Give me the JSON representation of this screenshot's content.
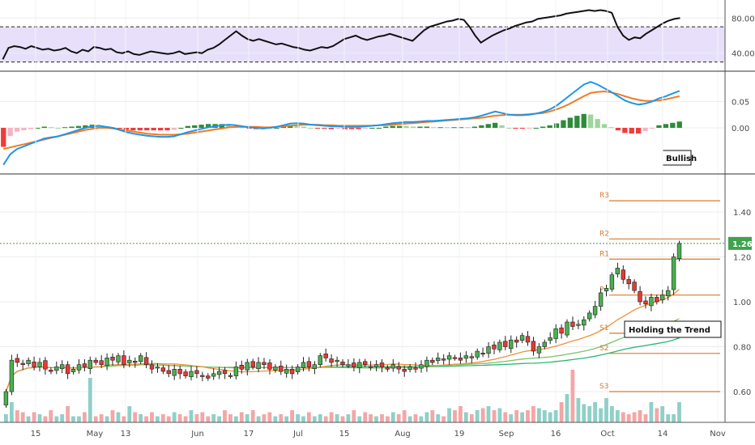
{
  "chart_data": {
    "type": "candlestick",
    "x_tick_labels": [
      "15",
      "May",
      "13",
      "Jun",
      "17",
      "Jul",
      "15",
      "Aug",
      "19",
      "Sep",
      "16",
      "Oct",
      "14",
      "Nov"
    ],
    "panels": {
      "rsi": {
        "ticks": [
          "80.00",
          "40.00"
        ],
        "band_upper": 70,
        "band_lower": 30,
        "values": [
          33,
          46,
          48,
          47,
          45,
          48,
          46,
          44,
          45,
          43,
          44,
          46,
          42,
          40,
          44,
          42,
          47,
          46,
          44,
          45,
          41,
          40,
          42,
          39,
          38,
          40,
          42,
          41,
          40,
          39,
          40,
          42,
          39,
          40,
          41,
          40,
          44,
          46,
          50,
          55,
          60,
          65,
          60,
          56,
          54,
          56,
          54,
          52,
          50,
          51,
          49,
          47,
          46,
          44,
          43,
          45,
          47,
          46,
          48,
          52,
          56,
          58,
          60,
          57,
          55,
          57,
          59,
          60,
          62,
          60,
          58,
          56,
          54,
          60,
          66,
          70,
          72,
          74,
          76,
          77,
          79,
          78,
          70,
          60,
          52,
          56,
          60,
          63,
          66,
          68,
          71,
          73,
          75,
          76,
          79,
          80,
          81,
          82,
          83,
          85,
          86,
          87,
          88,
          89,
          88,
          89,
          88,
          86,
          70,
          60,
          55,
          58,
          57,
          62,
          66,
          70,
          74,
          77,
          79,
          80
        ]
      },
      "macd": {
        "ticks": [
          "0.05",
          "0.00"
        ],
        "macd": [
          -0.07,
          -0.05,
          -0.04,
          -0.035,
          -0.03,
          -0.025,
          -0.02,
          -0.018,
          -0.016,
          -0.012,
          -0.008,
          -0.004,
          0.0,
          0.003,
          0.004,
          0.002,
          0.0,
          -0.004,
          -0.008,
          -0.011,
          -0.013,
          -0.015,
          -0.016,
          -0.017,
          -0.017,
          -0.016,
          -0.012,
          -0.008,
          -0.005,
          -0.002,
          0.001,
          0.003,
          0.005,
          0.006,
          0.005,
          0.003,
          0.001,
          0.0,
          -0.001,
          0.0,
          0.002,
          0.005,
          0.008,
          0.009,
          0.008,
          0.006,
          0.005,
          0.004,
          0.003,
          0.003,
          0.002,
          0.002,
          0.002,
          0.003,
          0.004,
          0.005,
          0.007,
          0.009,
          0.01,
          0.011,
          0.011,
          0.012,
          0.013,
          0.013,
          0.014,
          0.015,
          0.016,
          0.017,
          0.018,
          0.02,
          0.023,
          0.027,
          0.031,
          0.028,
          0.025,
          0.024,
          0.024,
          0.025,
          0.027,
          0.03,
          0.035,
          0.042,
          0.052,
          0.062,
          0.072,
          0.082,
          0.087,
          0.082,
          0.075,
          0.068,
          0.06,
          0.052,
          0.047,
          0.044,
          0.046,
          0.05,
          0.056,
          0.06,
          0.065,
          0.07
        ],
        "signal": [
          -0.04,
          -0.037,
          -0.034,
          -0.031,
          -0.028,
          -0.025,
          -0.022,
          -0.019,
          -0.016,
          -0.013,
          -0.01,
          -0.007,
          -0.004,
          -0.002,
          0.0,
          0.0,
          -0.001,
          -0.003,
          -0.005,
          -0.007,
          -0.009,
          -0.011,
          -0.012,
          -0.013,
          -0.013,
          -0.013,
          -0.012,
          -0.011,
          -0.009,
          -0.007,
          -0.005,
          -0.003,
          -0.001,
          0.001,
          0.002,
          0.002,
          0.002,
          0.002,
          0.001,
          0.001,
          0.002,
          0.003,
          0.004,
          0.005,
          0.006,
          0.006,
          0.006,
          0.005,
          0.005,
          0.004,
          0.004,
          0.004,
          0.004,
          0.004,
          0.004,
          0.005,
          0.005,
          0.006,
          0.007,
          0.008,
          0.009,
          0.01,
          0.011,
          0.012,
          0.013,
          0.014,
          0.015,
          0.016,
          0.017,
          0.018,
          0.019,
          0.021,
          0.023,
          0.024,
          0.025,
          0.025,
          0.025,
          0.026,
          0.027,
          0.028,
          0.031,
          0.035,
          0.04,
          0.046,
          0.053,
          0.06,
          0.066,
          0.068,
          0.069,
          0.067,
          0.064,
          0.06,
          0.056,
          0.053,
          0.051,
          0.051,
          0.052,
          0.054,
          0.057,
          0.06
        ],
        "histogram_note": "Bullish"
      },
      "price": {
        "ticks": [
          "1.40",
          "1.20",
          "1.00",
          "0.80",
          "0.60"
        ],
        "last_price": "1.26",
        "last_price_value": 1.26,
        "pivots": [
          {
            "label": "R3",
            "value": 1.45
          },
          {
            "label": "R2",
            "value": 1.28
          },
          {
            "label": "R1",
            "value": 1.19
          },
          {
            "label": "P",
            "value": 1.03
          },
          {
            "label": "S1",
            "value": 0.86
          },
          {
            "label": "S2",
            "value": 0.77
          },
          {
            "label": "S3",
            "value": 0.6
          }
        ],
        "note": "Holding the Trend",
        "closes": [
          0.6,
          0.74,
          0.73,
          0.72,
          0.74,
          0.71,
          0.73,
          0.7,
          0.69,
          0.71,
          0.72,
          0.68,
          0.7,
          0.72,
          0.71,
          0.74,
          0.73,
          0.72,
          0.75,
          0.74,
          0.76,
          0.72,
          0.74,
          0.73,
          0.76,
          0.72,
          0.7,
          0.71,
          0.69,
          0.68,
          0.7,
          0.68,
          0.67,
          0.69,
          0.68,
          0.67,
          0.66,
          0.68,
          0.69,
          0.68,
          0.67,
          0.71,
          0.7,
          0.73,
          0.71,
          0.73,
          0.72,
          0.7,
          0.71,
          0.69,
          0.7,
          0.68,
          0.71,
          0.73,
          0.71,
          0.72,
          0.76,
          0.75,
          0.73,
          0.74,
          0.72,
          0.72,
          0.71,
          0.73,
          0.72,
          0.71,
          0.72,
          0.71,
          0.7,
          0.72,
          0.7,
          0.69,
          0.71,
          0.7,
          0.72,
          0.74,
          0.73,
          0.75,
          0.74,
          0.76,
          0.75,
          0.74,
          0.76,
          0.75,
          0.78,
          0.77,
          0.8,
          0.79,
          0.82,
          0.8,
          0.83,
          0.82,
          0.85,
          0.82,
          0.78,
          0.8,
          0.82,
          0.84,
          0.88,
          0.86,
          0.91,
          0.89,
          0.9,
          0.92,
          0.95,
          0.98,
          1.04,
          1.06,
          1.12,
          1.15,
          1.1,
          1.08,
          1.05,
          1.0,
          0.99,
          1.02,
          1.0,
          1.03,
          1.05,
          1.2,
          1.26
        ]
      },
      "volume": {
        "values": [
          4,
          10,
          6,
          5,
          3,
          5,
          4,
          3,
          6,
          3,
          4,
          8,
          3,
          3,
          5,
          22,
          3,
          4,
          3,
          6,
          5,
          3,
          8,
          5,
          4,
          3,
          5,
          3,
          4,
          3,
          5,
          4,
          3,
          6,
          4,
          5,
          3,
          4,
          3,
          6,
          4,
          3,
          5,
          4,
          6,
          3,
          4,
          5,
          3,
          4,
          3,
          6,
          4,
          3,
          5,
          3,
          4,
          3,
          5,
          4,
          3,
          4,
          6,
          3,
          5,
          4,
          3,
          4,
          3,
          5,
          4,
          6,
          3,
          4,
          3,
          5,
          6,
          4,
          3,
          7,
          6,
          8,
          5,
          4,
          6,
          7,
          8,
          6,
          7,
          5,
          4,
          6,
          5,
          6,
          8,
          7,
          6,
          5,
          6,
          10,
          14,
          26,
          12,
          9,
          8,
          10,
          7,
          12,
          8,
          6,
          5,
          4,
          5,
          6,
          4,
          10,
          7,
          8,
          4
        ]
      }
    }
  }
}
